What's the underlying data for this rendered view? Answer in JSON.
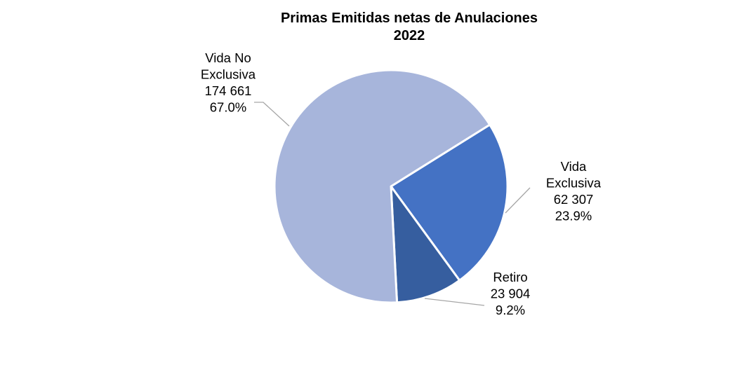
{
  "chart_data": {
    "type": "pie",
    "title": "Primas Emitidas netas de Anulaciones",
    "subtitle": "2022",
    "slices": [
      {
        "name_lines": [
          "Vida",
          "Exclusiva"
        ],
        "value": "62 307",
        "percent": "23.9%",
        "share": 23.9,
        "color": "#4472c4"
      },
      {
        "name_lines": [
          "Retiro"
        ],
        "value": "23 904",
        "percent": "9.2%",
        "share": 9.2,
        "color": "#365e9f"
      },
      {
        "name_lines": [
          "Vida No",
          "Exclusiva"
        ],
        "value": "174 661",
        "percent": "67.0%",
        "share": 67.0,
        "color": "#a7b5db"
      }
    ]
  }
}
